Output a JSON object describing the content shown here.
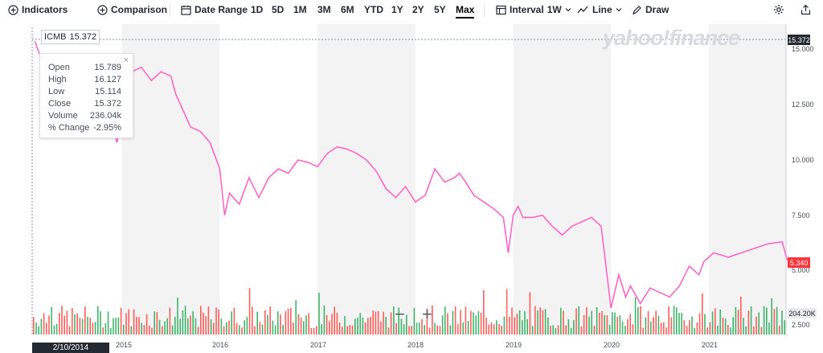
{
  "toolbar": {
    "indicators_label": "Indicators",
    "comparison_label": "Comparison",
    "date_range_label": "Date Range",
    "ranges": [
      "1D",
      "5D",
      "1M",
      "3M",
      "6M",
      "YTD",
      "1Y",
      "2Y",
      "5Y",
      "Max"
    ],
    "active_range": "Max",
    "interval_label": "Interval",
    "interval_value": "1W",
    "chart_type_label": "Line",
    "draw_label": "Draw"
  },
  "watermark": "yahoo!finance",
  "ticker": {
    "symbol": "ICMB",
    "price": "15.372"
  },
  "tooltip": {
    "rows": [
      {
        "label": "Open",
        "value": "15.789"
      },
      {
        "label": "High",
        "value": "16.127"
      },
      {
        "label": "Low",
        "value": "15.114"
      },
      {
        "label": "Close",
        "value": "15.372"
      },
      {
        "label": "Volume",
        "value": "236.04k"
      },
      {
        "label": "% Change",
        "value": "-2.95%"
      }
    ],
    "close_symbol": "×"
  },
  "price_labels": {
    "crosshair": "15.372",
    "last": "5.340",
    "volume": "204.20K"
  },
  "crosshair_date": "2/10/2014",
  "zoom": {
    "minus": "−",
    "plus": "+"
  },
  "colors": {
    "line": "#ff66c4",
    "up": "#1ea954",
    "down": "#ff433d",
    "band": "#f3f3f3",
    "last": "#ff333a"
  },
  "chart_data": {
    "type": "line",
    "x_tick_labels": [
      "2015",
      "2016",
      "2017",
      "2018",
      "2019",
      "2020",
      "2021"
    ],
    "y_tick_labels": [
      "15.000",
      "12.500",
      "10.000",
      "7.500",
      "5.000",
      "2.500"
    ],
    "ylim": [
      2.5,
      15.5
    ],
    "series": [
      {
        "x": [
          2014.11,
          2014.2,
          2014.4,
          2014.6,
          2014.8,
          2014.95,
          2015.05,
          2015.1,
          2015.2,
          2015.3,
          2015.4,
          2015.5,
          2015.55,
          2015.7,
          2015.8,
          2015.9,
          2016.0,
          2016.05,
          2016.1,
          2016.2,
          2016.3,
          2016.4,
          2016.5,
          2016.6,
          2016.7,
          2016.8,
          2016.9,
          2017.0,
          2017.1,
          2017.2,
          2017.3,
          2017.4,
          2017.5,
          2017.6,
          2017.7,
          2017.8,
          2017.9,
          2018.0,
          2018.1,
          2018.2,
          2018.3,
          2018.4,
          2018.45,
          2018.5,
          2018.6,
          2018.7,
          2018.8,
          2018.9,
          2018.95,
          2019.0,
          2019.05,
          2019.1,
          2019.2,
          2019.3,
          2019.4,
          2019.5,
          2019.6,
          2019.7,
          2019.8,
          2019.9,
          2020.0,
          2020.08,
          2020.15,
          2020.2,
          2020.3,
          2020.4,
          2020.5,
          2020.6,
          2020.7,
          2020.8,
          2020.9,
          2020.95,
          2021.05,
          2021.2,
          2021.4,
          2021.6,
          2021.75,
          2021.8,
          2021.9
        ],
        "y": [
          15.372,
          14.3,
          13.2,
          11.5,
          12.8,
          10.8,
          13.2,
          14.0,
          14.2,
          13.6,
          14.0,
          13.8,
          13.0,
          11.5,
          11.3,
          10.8,
          9.6,
          7.5,
          8.5,
          8.0,
          9.2,
          8.3,
          9.2,
          9.6,
          9.4,
          10.0,
          9.9,
          9.7,
          10.3,
          10.6,
          10.5,
          10.3,
          10.0,
          9.5,
          8.7,
          8.3,
          8.8,
          8.1,
          8.4,
          9.6,
          9.0,
          9.2,
          9.4,
          9.1,
          8.4,
          8.1,
          7.8,
          7.4,
          5.8,
          7.5,
          7.9,
          7.4,
          7.4,
          7.5,
          7.0,
          6.6,
          7.0,
          7.2,
          7.4,
          7.0,
          3.3,
          4.8,
          3.8,
          4.3,
          3.5,
          4.2,
          4.0,
          3.8,
          4.3,
          5.2,
          4.8,
          5.4,
          5.8,
          5.6,
          5.9,
          6.2,
          6.3,
          5.5,
          5.34
        ]
      }
    ]
  }
}
